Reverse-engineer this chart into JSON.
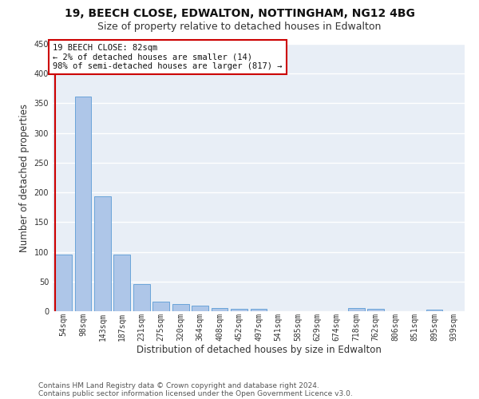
{
  "title1": "19, BEECH CLOSE, EDWALTON, NOTTINGHAM, NG12 4BG",
  "title2": "Size of property relative to detached houses in Edwalton",
  "xlabel": "Distribution of detached houses by size in Edwalton",
  "ylabel": "Number of detached properties",
  "footer1": "Contains HM Land Registry data © Crown copyright and database right 2024.",
  "footer2": "Contains public sector information licensed under the Open Government Licence v3.0.",
  "annotation_line1": "19 BEECH CLOSE: 82sqm",
  "annotation_line2": "← 2% of detached houses are smaller (14)",
  "annotation_line3": "98% of semi-detached houses are larger (817) →",
  "bar_labels": [
    "54sqm",
    "98sqm",
    "143sqm",
    "187sqm",
    "231sqm",
    "275sqm",
    "320sqm",
    "364sqm",
    "408sqm",
    "452sqm",
    "497sqm",
    "541sqm",
    "585sqm",
    "629sqm",
    "674sqm",
    "718sqm",
    "762sqm",
    "806sqm",
    "851sqm",
    "895sqm",
    "939sqm"
  ],
  "bar_values": [
    96,
    362,
    193,
    95,
    46,
    16,
    12,
    10,
    6,
    4,
    4,
    0,
    0,
    0,
    0,
    5,
    4,
    0,
    0,
    3,
    0
  ],
  "bar_color": "#aec6e8",
  "bar_edge_color": "#5b9bd5",
  "bg_color": "#ffffff",
  "plot_bg_color": "#e8eef6",
  "grid_color": "#ffffff",
  "red_color": "#cc0000",
  "title1_fontsize": 10,
  "title2_fontsize": 9,
  "ylabel_fontsize": 8.5,
  "xlabel_fontsize": 8.5,
  "tick_fontsize": 7,
  "ann_fontsize": 7.5,
  "footer_fontsize": 6.5,
  "ylim": [
    0,
    450
  ],
  "yticks": [
    0,
    50,
    100,
    150,
    200,
    250,
    300,
    350,
    400,
    450
  ]
}
